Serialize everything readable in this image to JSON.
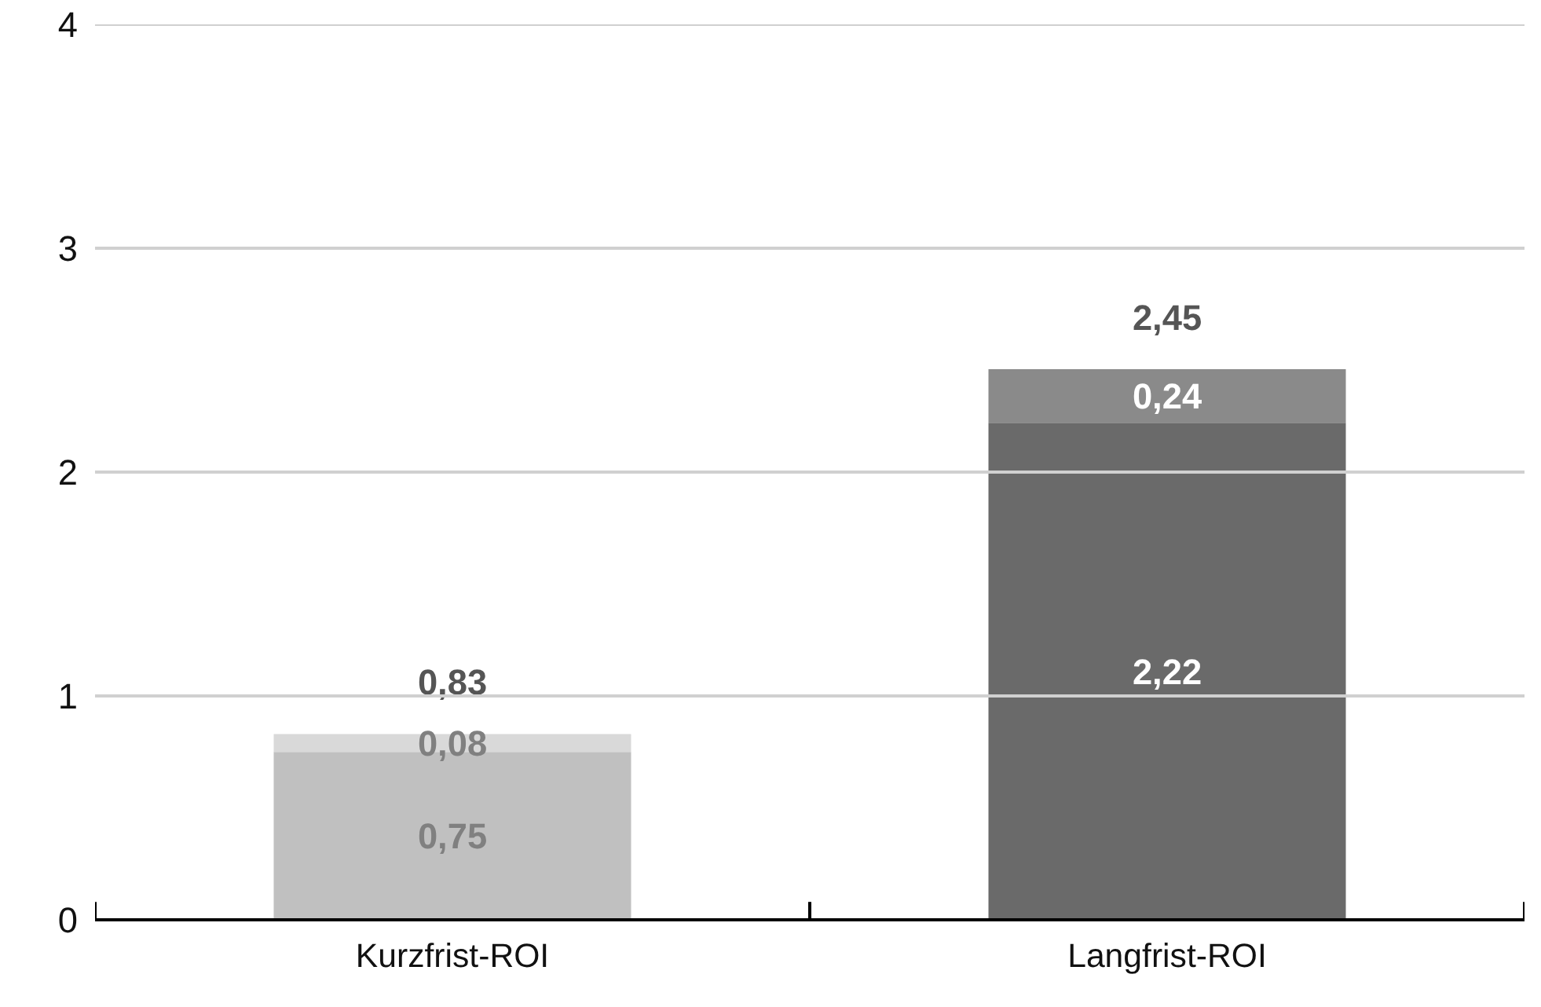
{
  "chart_data": {
    "type": "bar",
    "stacked": true,
    "categories": [
      "Kurzfrist-ROI",
      "Langfrist-ROI"
    ],
    "series": [
      {
        "colors": [
          "#c0c0c0",
          "#6a6a6a"
        ],
        "values": [
          0.75,
          2.22
        ],
        "value_labels": [
          "0,75",
          "2,22"
        ]
      },
      {
        "colors": [
          "#d9d9d9",
          "#8a8a8a"
        ],
        "values": [
          0.08,
          0.24
        ],
        "value_labels": [
          "0,08",
          "0,24"
        ]
      }
    ],
    "totals": [
      "0,83",
      "2,45"
    ],
    "ylim": [
      0,
      4
    ],
    "yticks": [
      0,
      1,
      2,
      3,
      4
    ],
    "grid": "y"
  }
}
